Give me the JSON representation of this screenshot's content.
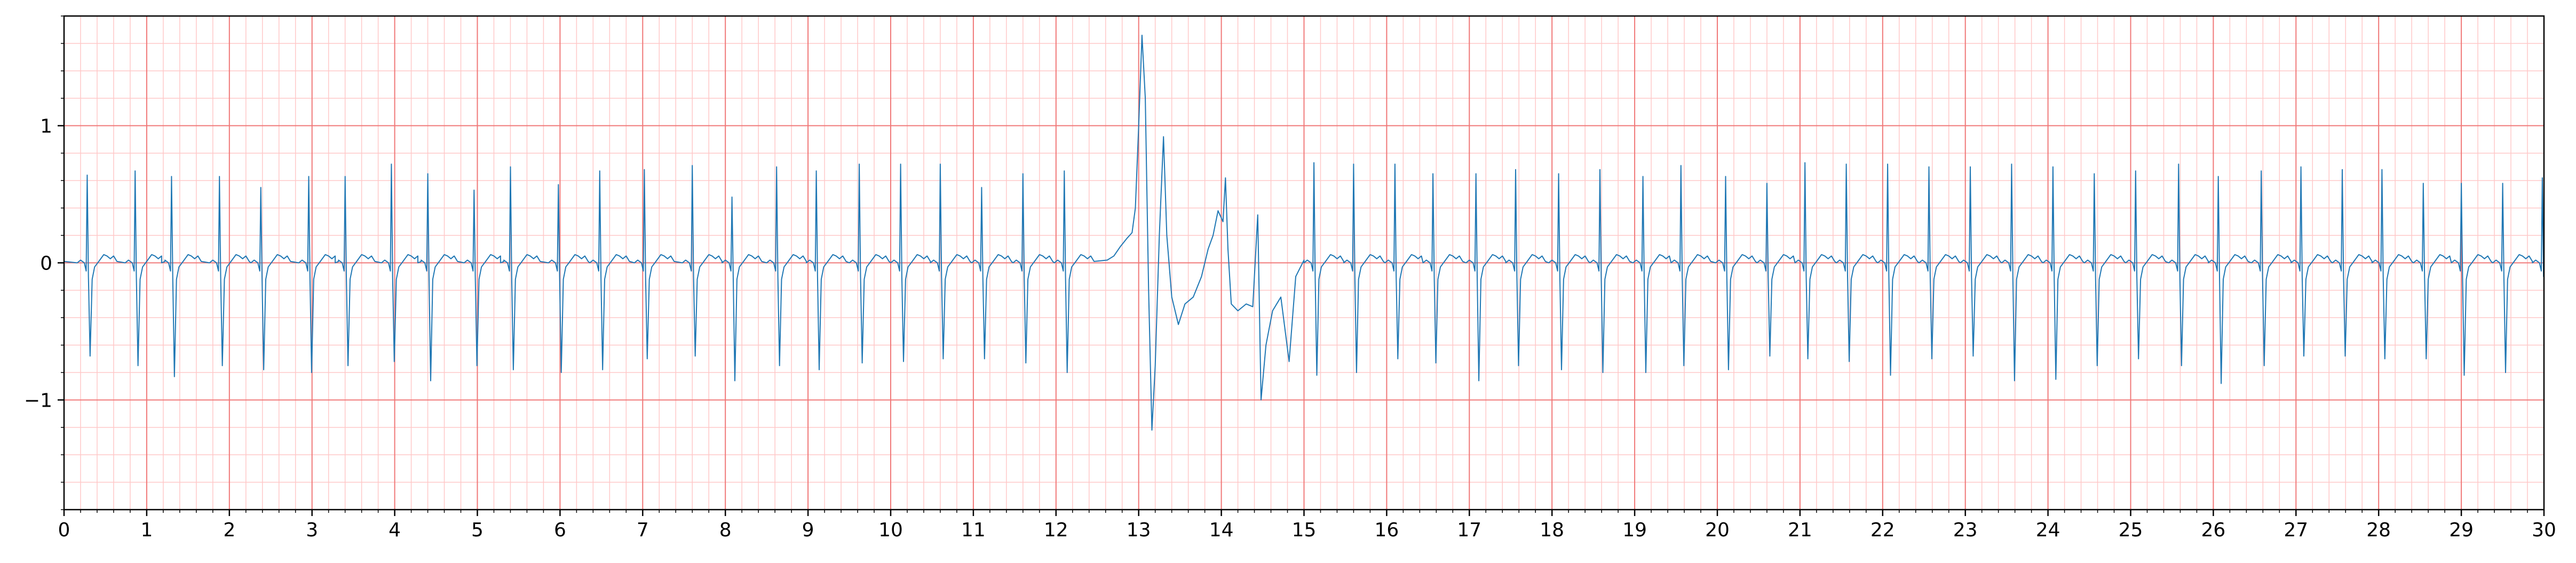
{
  "chart_data": {
    "type": "line",
    "title": "",
    "xlabel": "",
    "ylabel": "",
    "xlim": [
      0,
      30
    ],
    "ylim": [
      -1.8,
      1.8
    ],
    "x_ticks": [
      0,
      1,
      2,
      3,
      4,
      5,
      6,
      7,
      8,
      9,
      10,
      11,
      12,
      13,
      14,
      15,
      16,
      17,
      18,
      19,
      20,
      21,
      22,
      23,
      24,
      25,
      26,
      27,
      28,
      29,
      30
    ],
    "x_tick_labels": [
      "0",
      "1",
      "2",
      "3",
      "4",
      "5",
      "6",
      "7",
      "8",
      "9",
      "10",
      "11",
      "12",
      "13",
      "14",
      "15",
      "16",
      "17",
      "18",
      "19",
      "20",
      "21",
      "22",
      "23",
      "24",
      "25",
      "26",
      "27",
      "28",
      "29",
      "30"
    ],
    "y_ticks": [
      -1,
      0,
      1
    ],
    "y_tick_labels": [
      "−1",
      "0",
      "1"
    ],
    "grid": {
      "major": true,
      "minor": true,
      "major_x_step": 1,
      "major_y_step": 1,
      "minor_x_step": 0.2,
      "minor_y_step": 0.2
    },
    "colors": {
      "trace": "#1f77b4",
      "major_grid": "#f07878",
      "minor_grid": "#ffc8c8",
      "axes": "#000000"
    },
    "series": [
      {
        "beat_times": [
          0.28,
          0.86,
          1.3,
          1.88,
          2.38,
          2.96,
          3.4,
          3.96,
          4.4,
          4.96,
          5.4,
          5.98,
          6.48,
          7.02,
          7.6,
          8.08,
          8.62,
          9.1,
          9.62,
          10.12,
          10.6,
          11.1,
          11.6,
          12.1,
          12.62,
          14.1,
          14.58,
          15.12,
          15.6,
          16.1,
          16.56,
          17.08,
          17.56,
          18.08,
          18.58,
          19.1,
          19.56,
          20.1,
          20.6,
          21.06,
          21.56,
          22.06,
          22.56,
          23.06,
          23.56,
          24.06,
          24.56,
          25.06,
          25.58,
          26.06,
          26.58,
          27.06,
          27.56,
          28.04,
          28.54,
          29.0,
          29.5,
          29.98
        ],
        "r_amplitudes": [
          0.64,
          0.67,
          0.63,
          0.63,
          0.55,
          0.63,
          0.63,
          0.72,
          0.65,
          0.53,
          0.7,
          0.57,
          0.67,
          0.68,
          0.71,
          0.48,
          0.7,
          0.67,
          0.72,
          0.72,
          0.72,
          0.55,
          0.65,
          0.67,
          0.71,
          0.56,
          0.68,
          0.73,
          0.72,
          0.72,
          0.65,
          0.65,
          0.68,
          0.65,
          0.68,
          0.63,
          0.71,
          0.63,
          0.58,
          0.73,
          0.72,
          0.72,
          0.7,
          0.7,
          0.72,
          0.7,
          0.65,
          0.67,
          0.72,
          0.63,
          0.67,
          0.7,
          0.68,
          0.68,
          0.58,
          0.58,
          0.58,
          0.62
        ],
        "s_amplitudes": [
          -0.68,
          -0.75,
          -0.83,
          -0.75,
          -0.78,
          -0.8,
          -0.75,
          -0.72,
          -0.86,
          -0.75,
          -0.78,
          -0.8,
          -0.78,
          -0.7,
          -0.68,
          -0.86,
          -0.75,
          -0.78,
          -0.73,
          -0.72,
          -0.7,
          -0.7,
          -0.73,
          -0.8,
          -0.72,
          -0.72,
          -0.75,
          -0.82,
          -0.8,
          -0.7,
          -0.73,
          -0.86,
          -0.75,
          -0.78,
          -0.8,
          -0.8,
          -0.75,
          -0.78,
          -0.68,
          -0.7,
          -0.72,
          -0.82,
          -0.7,
          -0.68,
          -0.86,
          -0.85,
          -0.75,
          -0.7,
          -0.75,
          -0.88,
          -0.75,
          -0.68,
          -0.68,
          -0.7,
          -0.7,
          -0.82,
          -0.8,
          -0.1
        ],
        "artifact_segment": [
          [
            12.62,
            0.02
          ],
          [
            12.7,
            0.05
          ],
          [
            12.78,
            0.12
          ],
          [
            12.86,
            0.18
          ],
          [
            12.92,
            0.22
          ],
          [
            12.96,
            0.4
          ],
          [
            13.0,
            1.0
          ],
          [
            13.04,
            1.66
          ],
          [
            13.08,
            1.2
          ],
          [
            13.12,
            -0.2
          ],
          [
            13.16,
            -1.22
          ],
          [
            13.2,
            -0.75
          ],
          [
            13.25,
            0.2
          ],
          [
            13.3,
            0.92
          ],
          [
            13.34,
            0.2
          ],
          [
            13.4,
            -0.25
          ],
          [
            13.48,
            -0.45
          ],
          [
            13.56,
            -0.3
          ],
          [
            13.66,
            -0.25
          ],
          [
            13.76,
            -0.1
          ],
          [
            13.84,
            0.1
          ],
          [
            13.9,
            0.2
          ],
          [
            13.96,
            0.38
          ],
          [
            14.02,
            0.3
          ],
          [
            14.05,
            0.62
          ],
          [
            14.08,
            0.1
          ],
          [
            14.12,
            -0.3
          ],
          [
            14.2,
            -0.35
          ],
          [
            14.3,
            -0.3
          ],
          [
            14.38,
            -0.32
          ],
          [
            14.44,
            0.35
          ],
          [
            14.48,
            -1.0
          ],
          [
            14.54,
            -0.6
          ],
          [
            14.62,
            -0.35
          ],
          [
            14.72,
            -0.25
          ],
          [
            14.82,
            -0.72
          ],
          [
            14.9,
            -0.1
          ],
          [
            15.0,
            0.02
          ]
        ]
      }
    ]
  }
}
